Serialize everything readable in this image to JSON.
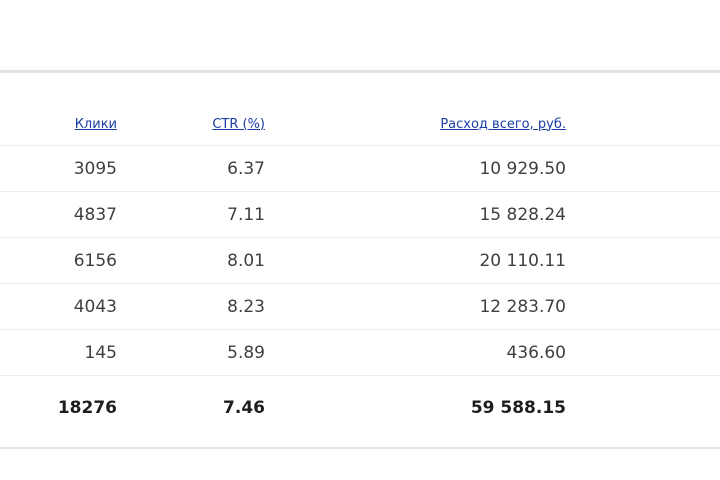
{
  "table": {
    "columns": [
      {
        "label": "Клики"
      },
      {
        "label": "CTR (%)"
      },
      {
        "label": "Расход всего, руб."
      }
    ],
    "rows": [
      {
        "clicks": "3095",
        "ctr": "6.37",
        "spend": "10 929.50"
      },
      {
        "clicks": "4837",
        "ctr": "7.11",
        "spend": "15 828.24"
      },
      {
        "clicks": "6156",
        "ctr": "8.01",
        "spend": "20 110.11"
      },
      {
        "clicks": "4043",
        "ctr": "8.23",
        "spend": "12 283.70"
      },
      {
        "clicks": "145",
        "ctr": "5.89",
        "spend": "436.60"
      }
    ],
    "total": {
      "clicks": "18276",
      "ctr": "7.46",
      "spend": "59 588.15"
    }
  },
  "colors": {
    "header_link": "#1a3ea3",
    "text": "#3f3f3f",
    "divider": "#ededed"
  }
}
